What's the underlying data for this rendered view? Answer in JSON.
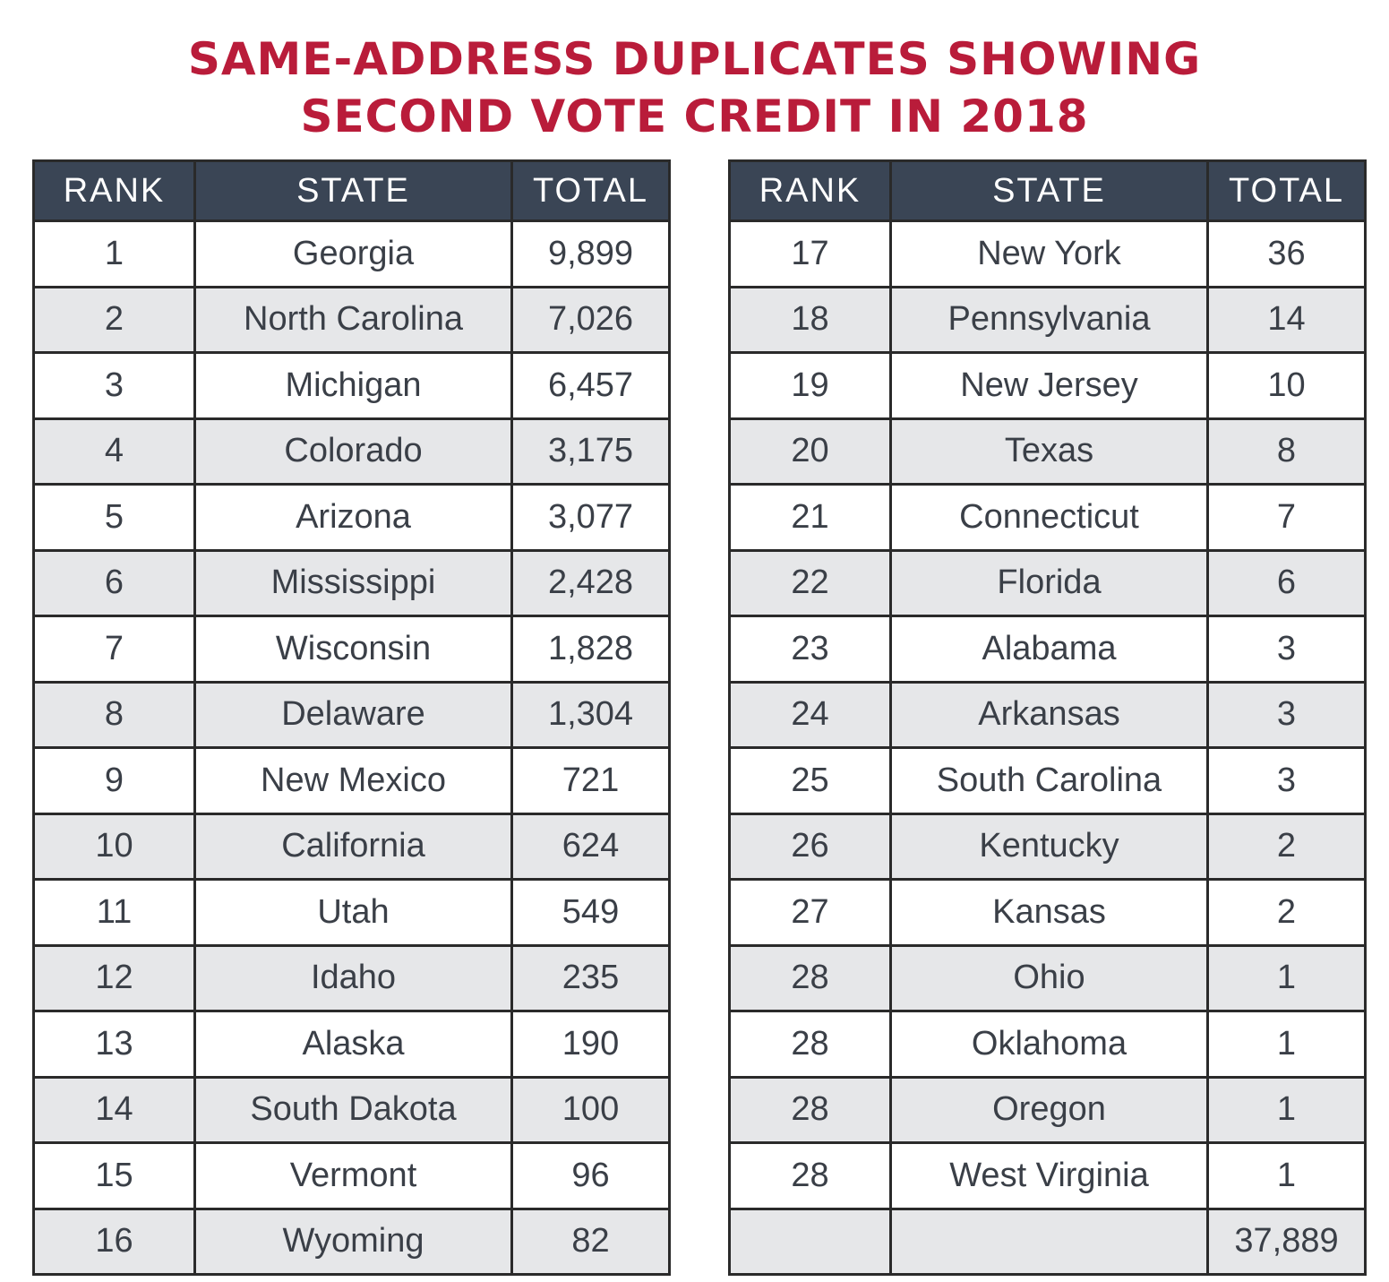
{
  "title": {
    "line1": "SAME-ADDRESS DUPLICATES SHOWING",
    "line2": "SECOND VOTE CREDIT IN 2018"
  },
  "columns": {
    "rank": "RANK",
    "state": "STATE",
    "total": "TOTAL"
  },
  "colors": {
    "title": "#b91c3a",
    "header_bg": "#3a4555",
    "row_alt": "#e6e7e9"
  },
  "chart_data": {
    "type": "table",
    "title": "SAME-ADDRESS DUPLICATES SHOWING SECOND VOTE CREDIT IN 2018",
    "columns": [
      "RANK",
      "STATE",
      "TOTAL"
    ],
    "left_rows": [
      {
        "rank": "1",
        "state": "Georgia",
        "total": "9,899"
      },
      {
        "rank": "2",
        "state": "North Carolina",
        "total": "7,026"
      },
      {
        "rank": "3",
        "state": "Michigan",
        "total": "6,457"
      },
      {
        "rank": "4",
        "state": "Colorado",
        "total": "3,175"
      },
      {
        "rank": "5",
        "state": "Arizona",
        "total": "3,077"
      },
      {
        "rank": "6",
        "state": "Mississippi",
        "total": "2,428"
      },
      {
        "rank": "7",
        "state": "Wisconsin",
        "total": "1,828"
      },
      {
        "rank": "8",
        "state": "Delaware",
        "total": "1,304"
      },
      {
        "rank": "9",
        "state": "New Mexico",
        "total": "721"
      },
      {
        "rank": "10",
        "state": "California",
        "total": "624"
      },
      {
        "rank": "11",
        "state": "Utah",
        "total": "549"
      },
      {
        "rank": "12",
        "state": "Idaho",
        "total": "235"
      },
      {
        "rank": "13",
        "state": "Alaska",
        "total": "190"
      },
      {
        "rank": "14",
        "state": "South Dakota",
        "total": "100"
      },
      {
        "rank": "15",
        "state": "Vermont",
        "total": "96"
      },
      {
        "rank": "16",
        "state": "Wyoming",
        "total": "82"
      }
    ],
    "right_rows": [
      {
        "rank": "17",
        "state": "New York",
        "total": "36"
      },
      {
        "rank": "18",
        "state": "Pennsylvania",
        "total": "14"
      },
      {
        "rank": "19",
        "state": "New Jersey",
        "total": "10"
      },
      {
        "rank": "20",
        "state": "Texas",
        "total": "8"
      },
      {
        "rank": "21",
        "state": "Connecticut",
        "total": "7"
      },
      {
        "rank": "22",
        "state": "Florida",
        "total": "6"
      },
      {
        "rank": "23",
        "state": "Alabama",
        "total": "3"
      },
      {
        "rank": "24",
        "state": "Arkansas",
        "total": "3"
      },
      {
        "rank": "25",
        "state": "South Carolina",
        "total": "3"
      },
      {
        "rank": "26",
        "state": "Kentucky",
        "total": "2"
      },
      {
        "rank": "27",
        "state": "Kansas",
        "total": "2"
      },
      {
        "rank": "28",
        "state": "Ohio",
        "total": "1"
      },
      {
        "rank": "28",
        "state": "Oklahoma",
        "total": "1"
      },
      {
        "rank": "28",
        "state": "Oregon",
        "total": "1"
      },
      {
        "rank": "28",
        "state": "West Virginia",
        "total": "1"
      },
      {
        "rank": "",
        "state": "",
        "total": "37,889"
      }
    ]
  }
}
